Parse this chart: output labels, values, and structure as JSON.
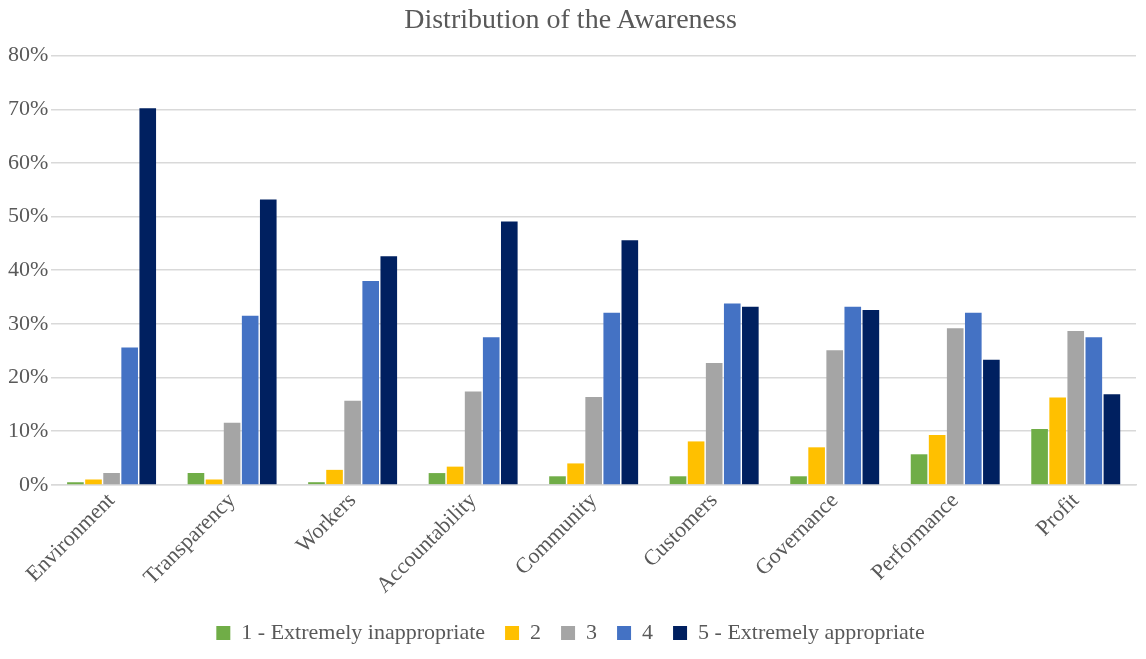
{
  "chart_data": {
    "type": "bar",
    "title": "Distribution of the Awareness",
    "categories": [
      "Environment",
      "Transparency",
      "Workers",
      "Accountability",
      "Community",
      "Customers",
      "Governance",
      "Performance",
      "Profit"
    ],
    "series": [
      {
        "name": "1 - Extremely inappropriate",
        "color": "#70ad47",
        "values": [
          0.5,
          2.2,
          0.5,
          2.2,
          1.6,
          1.6,
          1.6,
          5.7,
          10.4
        ]
      },
      {
        "name": "2",
        "color": "#ffc000",
        "values": [
          1,
          1,
          2.8,
          3.4,
          4,
          8.1,
          7,
          9.3,
          16.3
        ]
      },
      {
        "name": "3",
        "color": "#a5a5a5",
        "values": [
          2.2,
          11.6,
          15.7,
          17.4,
          16.4,
          22.7,
          25.1,
          29.2,
          28.7
        ]
      },
      {
        "name": "4",
        "color": "#4472c4",
        "values": [
          25.6,
          31.5,
          38,
          27.5,
          32.1,
          33.8,
          33.2,
          32.1,
          27.5
        ]
      },
      {
        "name": "5 - Extremely appropriate",
        "color": "#002060",
        "values": [
          70.2,
          53.2,
          42.6,
          49.1,
          45.6,
          33.2,
          32.6,
          23.3,
          16.9
        ]
      }
    ],
    "ylim": [
      0,
      80
    ],
    "yticks": [
      {
        "value": 0,
        "label": "0%"
      },
      {
        "value": 10,
        "label": "10%"
      },
      {
        "value": 20,
        "label": "20%"
      },
      {
        "value": 30,
        "label": "30%"
      },
      {
        "value": 40,
        "label": "40%"
      },
      {
        "value": 50,
        "label": "50%"
      },
      {
        "value": 60,
        "label": "60%"
      },
      {
        "value": 70,
        "label": "70%"
      },
      {
        "value": 80,
        "label": "80%"
      }
    ],
    "grid": "y",
    "legend": "bottom"
  }
}
